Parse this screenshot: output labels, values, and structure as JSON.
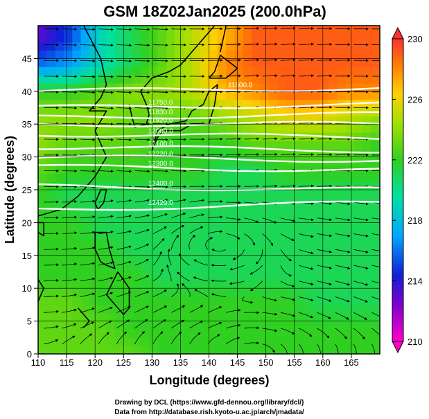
{
  "title": "GSM 18Z02Jan2025 (200.0hPa)",
  "footer": {
    "line1": "Drawing by DCL (https://www.gfd-dennou.org/library/dcl/)",
    "line2": "Data from http://database.rish.kyoto-u.ac.jp/arch/jmadata/"
  },
  "chart_data": {
    "type": "heatmap",
    "title": "GSM 18Z02Jan2025 (200.0hPa)",
    "xlabel": "Longitude (degrees)",
    "ylabel": "Latitude  (degrees)",
    "xlim": [
      110,
      170
    ],
    "ylim": [
      0,
      50
    ],
    "x_ticks": [
      "110",
      "115",
      "120",
      "125",
      "130",
      "135",
      "140",
      "145",
      "150",
      "155",
      "160",
      "165"
    ],
    "y_ticks": [
      "0",
      "5",
      "10",
      "15",
      "20",
      "25",
      "30",
      "35",
      "40",
      "45"
    ],
    "grid": true,
    "colorbar": {
      "range": [
        210,
        230
      ],
      "ticks": [
        "210",
        "214",
        "218",
        "222",
        "226",
        "230"
      ],
      "placement": "right"
    },
    "temperature_field": [
      {
        "lat": 48,
        "values": [
          213,
          215,
          219,
          221,
          223,
          225,
          227,
          229,
          229,
          229,
          229,
          229
        ]
      },
      {
        "lat": 44,
        "values": [
          216,
          217,
          219,
          221,
          223,
          225,
          228,
          229,
          229,
          229,
          229,
          229
        ]
      },
      {
        "lat": 40,
        "values": [
          222,
          222,
          223,
          224,
          224,
          225,
          227,
          228,
          229,
          229,
          228,
          228
        ]
      },
      {
        "lat": 36,
        "values": [
          224,
          224,
          224,
          223,
          223,
          223,
          224,
          225,
          226,
          226,
          225,
          224
        ]
      },
      {
        "lat": 32,
        "values": [
          224,
          223,
          223,
          223,
          222,
          222,
          222,
          223,
          223,
          223,
          223,
          222
        ]
      },
      {
        "lat": 28,
        "values": [
          223,
          222,
          222,
          222,
          222,
          222,
          221,
          221,
          222,
          222,
          222,
          222
        ]
      },
      {
        "lat": 24,
        "values": [
          222,
          221,
          221,
          221,
          221,
          221,
          221,
          221,
          221,
          221,
          221,
          221
        ]
      },
      {
        "lat": 20,
        "values": [
          222,
          222,
          221,
          221,
          221,
          221,
          221,
          221,
          221,
          221,
          221,
          221
        ]
      },
      {
        "lat": 16,
        "values": [
          222,
          222,
          222,
          221,
          221,
          221,
          221,
          221,
          221,
          221,
          221,
          221
        ]
      },
      {
        "lat": 12,
        "values": [
          222,
          222,
          222,
          222,
          221,
          221,
          221,
          221,
          221,
          221,
          221,
          221
        ]
      },
      {
        "lat": 8,
        "values": [
          223,
          223,
          222,
          222,
          222,
          222,
          222,
          222,
          222,
          221,
          221,
          221
        ]
      },
      {
        "lat": 4,
        "values": [
          223,
          223,
          223,
          222,
          222,
          222,
          222,
          222,
          222,
          222,
          222,
          222
        ]
      },
      {
        "lat": 0,
        "values": [
          223,
          223,
          223,
          223,
          222,
          222,
          222,
          222,
          222,
          222,
          222,
          222
        ]
      }
    ],
    "contours": [
      {
        "label": "11500.0",
        "lat_at_edges": [
          40.0,
          40.5
        ]
      },
      {
        "label": "11750.0",
        "lat_at_edges": [
          37.5,
          38.0
        ]
      },
      {
        "label": "11830.0",
        "lat_at_edges": [
          36.0,
          36.5
        ]
      },
      {
        "label": "11920.0",
        "lat_at_edges": [
          35.0,
          35.0
        ]
      },
      {
        "label": "12000.0",
        "lat_at_edges": [
          33.5,
          33.0
        ]
      },
      {
        "label": "12100.0",
        "lat_at_edges": [
          31.5,
          31.0
        ]
      },
      {
        "label": "12220.0",
        "lat_at_edges": [
          30.0,
          29.5
        ]
      },
      {
        "label": "12300.0",
        "lat_at_edges": [
          28.5,
          28.0
        ]
      },
      {
        "label": "12400.0",
        "lat_at_edges": [
          25.5,
          25.0
        ]
      },
      {
        "label": "12420.0",
        "lat_at_edges": [
          22.0,
          23.0
        ]
      }
    ],
    "vortex_center": {
      "lon": 142,
      "lat": 16.5
    }
  }
}
